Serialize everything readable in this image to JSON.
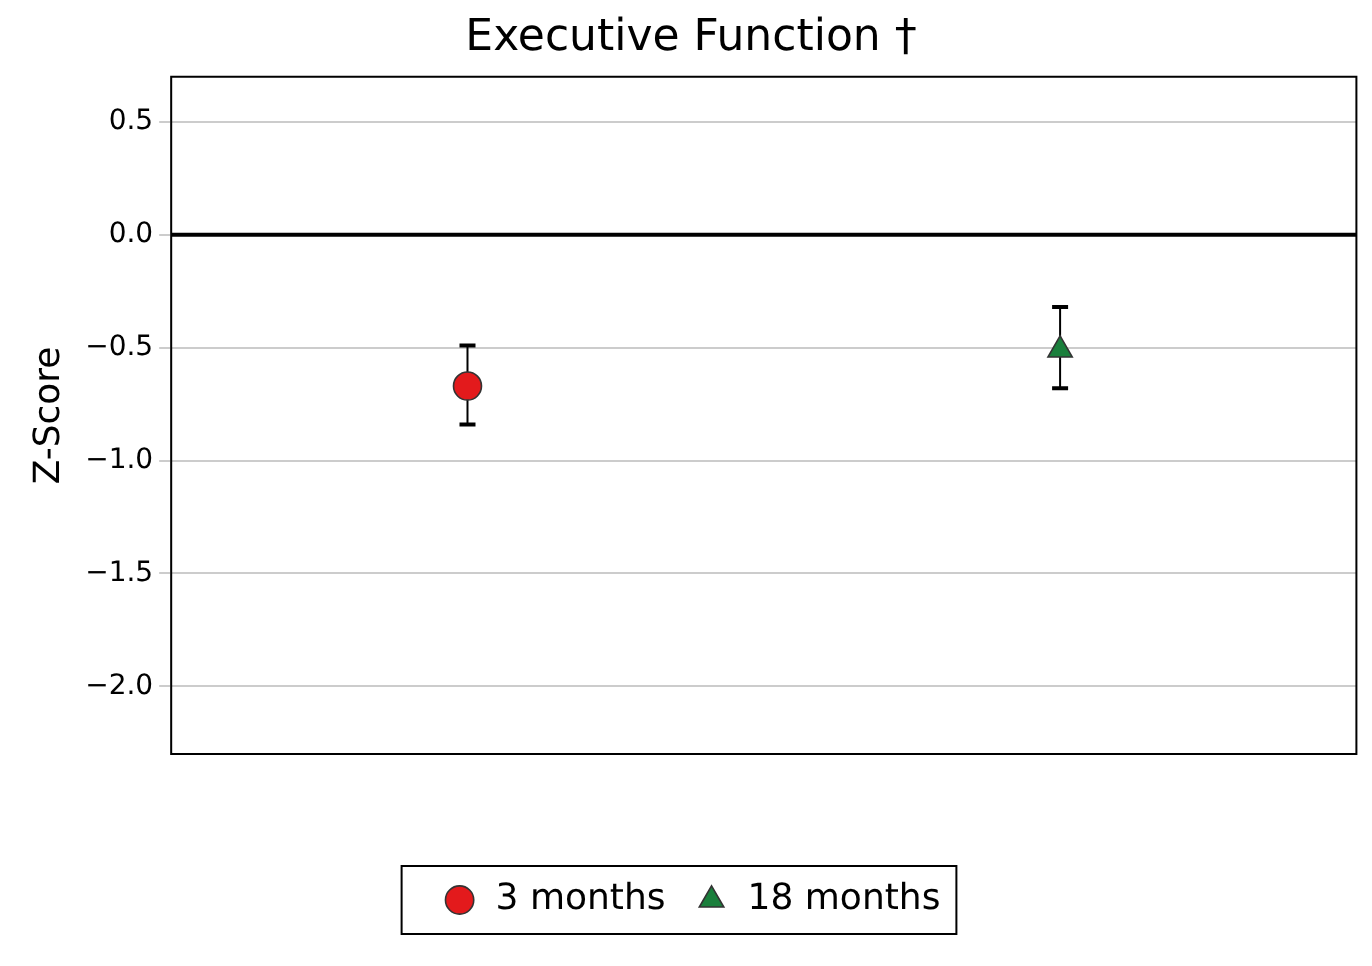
{
  "chart_data": {
    "type": "scatter",
    "title": "Executive Function †",
    "ylabel": "Z-Score",
    "categories": [
      null,
      null
    ],
    "series": [
      {
        "name": "3 months",
        "color": "#e31a1c",
        "marker": "circle",
        "values": [
          -0.67,
          null
        ],
        "errors": [
          [
            -0.84,
            -0.49
          ],
          null
        ]
      },
      {
        "name": "18 months",
        "color": "#1a7f3c",
        "marker": "triangle",
        "values": [
          null,
          -0.51
        ],
        "errors": [
          null,
          [
            -0.68,
            -0.32
          ]
        ]
      }
    ],
    "ylim": [
      -2.3,
      0.7
    ],
    "yticks": [
      {
        "value": -2,
        "label": "−2.0"
      },
      {
        "value": -1.5,
        "label": "−1.5"
      },
      {
        "value": -1,
        "label": "−1.0"
      },
      {
        "value": -0.5,
        "label": "−0.5"
      },
      {
        "value": 0,
        "label": "0.0"
      },
      {
        "value": 0.5,
        "label": "0.5"
      }
    ],
    "ref_lines": [
      {
        "axis": "y",
        "value": 0,
        "color": "#000000"
      }
    ],
    "grid": "y",
    "legend": "bottom"
  }
}
